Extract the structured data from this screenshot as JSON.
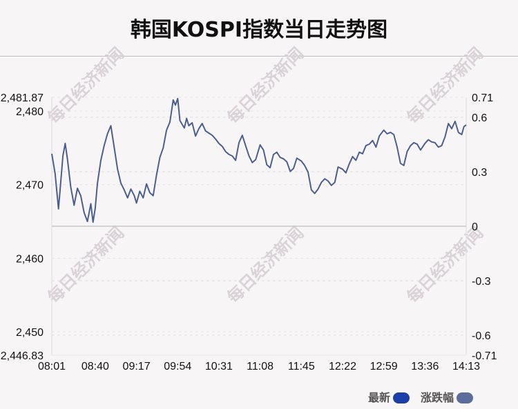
{
  "title": "韩国KOSPI指数当日走势图",
  "watermark": "每日经济新闻",
  "legend": [
    {
      "label": "最新",
      "color": "#1a3fa8"
    },
    {
      "label": "涨跌幅",
      "color": "#5b6d9a"
    }
  ],
  "chart_data": {
    "type": "line",
    "line_color": "#4a5f8f",
    "zero_line_color": "#c8c8c8",
    "grid": true,
    "x_ticks": [
      "08:01",
      "08:40",
      "09:17",
      "09:54",
      "10:31",
      "11:08",
      "11:45",
      "12:22",
      "12:59",
      "13:36",
      "14:13"
    ],
    "y_left_ticks": [
      "2,481.87",
      "2,480",
      "2,470",
      "2,460",
      "2,450",
      "2,446.83"
    ],
    "y_left_range": [
      2446.83,
      2481.87
    ],
    "y_right_ticks": [
      "0.71",
      "0.6",
      "0.3",
      "0",
      "-0.3",
      "-0.6",
      "-0.71"
    ],
    "y_right_range": [
      -0.71,
      0.71
    ],
    "baseline": 2464.35,
    "series": [
      {
        "x": [
          "08:01",
          "08:04",
          "08:07",
          "08:09",
          "08:11",
          "08:13",
          "08:15",
          "08:18",
          "08:21",
          "08:24",
          "08:27",
          "08:30",
          "08:33",
          "08:36",
          "08:38",
          "08:40",
          "08:42",
          "08:45",
          "08:48",
          "08:51",
          "08:54",
          "08:57",
          "09:00",
          "09:03",
          "09:06",
          "09:09",
          "09:12",
          "09:15",
          "09:17",
          "09:20",
          "09:23",
          "09:26",
          "09:29",
          "09:32",
          "09:35",
          "09:38",
          "09:41",
          "09:44",
          "09:47",
          "09:50",
          "09:52",
          "09:54",
          "09:56",
          "09:58",
          "10:00",
          "10:02",
          "10:04",
          "10:07",
          "10:10",
          "10:13",
          "10:16",
          "10:19",
          "10:22",
          "10:25",
          "10:28",
          "10:31",
          "10:34",
          "10:37",
          "10:40",
          "10:43",
          "10:46",
          "10:49",
          "10:52",
          "10:55",
          "10:58",
          "11:01",
          "11:04",
          "11:08",
          "11:11",
          "11:14",
          "11:17",
          "11:20",
          "11:23",
          "11:26",
          "11:29",
          "11:32",
          "11:35",
          "11:38",
          "11:41",
          "11:45",
          "11:48",
          "11:51",
          "11:54",
          "11:57",
          "12:00",
          "12:03",
          "12:06",
          "12:09",
          "12:12",
          "12:15",
          "12:18",
          "12:22",
          "12:25",
          "12:28",
          "12:31",
          "12:34",
          "12:37",
          "12:40",
          "12:43",
          "12:46",
          "12:49",
          "12:52",
          "12:55",
          "12:59",
          "13:02",
          "13:05",
          "13:08",
          "13:11",
          "13:14",
          "13:17",
          "13:20",
          "13:23",
          "13:26",
          "13:29",
          "13:32",
          "13:36",
          "13:39",
          "13:42",
          "13:45",
          "13:48",
          "13:51",
          "13:54",
          "13:57",
          "14:00",
          "14:03",
          "14:06",
          "14:09",
          "14:11",
          "14:13"
        ],
        "y": [
          2474.2,
          2471.5,
          2466.7,
          2470.3,
          2473.9,
          2475.6,
          2473.5,
          2469.7,
          2467.2,
          2469.5,
          2468.5,
          2466.2,
          2465.0,
          2467.4,
          2464.9,
          2466.8,
          2470.2,
          2473.3,
          2475.3,
          2476.9,
          2478.0,
          2475.1,
          2472.1,
          2470.2,
          2469.3,
          2468.2,
          2469.4,
          2468.5,
          2467.5,
          2469.1,
          2468.2,
          2470.1,
          2468.9,
          2468.5,
          2471.3,
          2473.7,
          2475.0,
          2477.4,
          2478.5,
          2481.5,
          2480.8,
          2481.7,
          2478.7,
          2478.2,
          2477.7,
          2479.0,
          2478.0,
          2478.4,
          2476.6,
          2477.6,
          2478.3,
          2477.3,
          2477.0,
          2476.7,
          2476.2,
          2475.6,
          2475.2,
          2474.5,
          2474.1,
          2473.9,
          2473.3,
          2475.7,
          2476.7,
          2475.3,
          2473.9,
          2473.0,
          2473.4,
          2475.4,
          2474.7,
          2472.7,
          2472.3,
          2474.1,
          2474.4,
          2473.7,
          2473.5,
          2473.1,
          2471.8,
          2472.2,
          2473.6,
          2473.2,
          2472.6,
          2471.7,
          2469.3,
          2468.8,
          2469.4,
          2470.3,
          2470.8,
          2470.5,
          2469.9,
          2470.3,
          2472.4,
          2472.1,
          2471.6,
          2472.8,
          2473.8,
          2473.3,
          2474.4,
          2474.2,
          2475.3,
          2475.5,
          2476.0,
          2475.1,
          2476.6,
          2477.4,
          2476.9,
          2477.1,
          2476.8,
          2475.1,
          2472.9,
          2472.6,
          2474.5,
          2475.3,
          2475.7,
          2475.5,
          2474.7,
          2475.6,
          2476.1,
          2475.8,
          2475.7,
          2475.1,
          2475.3,
          2476.5,
          2478.3,
          2477.6,
          2478.6,
          2477.1,
          2476.8,
          2477.9,
          2478.1
        ]
      }
    ]
  }
}
